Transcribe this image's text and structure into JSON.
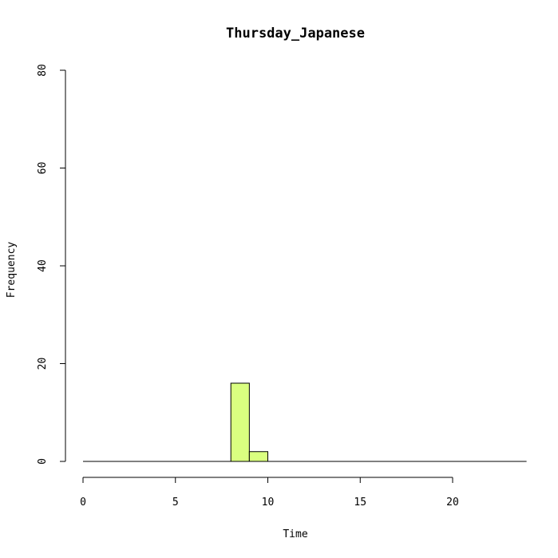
{
  "chart_data": {
    "type": "bar",
    "title": "Thursday_Japanese",
    "xlabel": "Time",
    "ylabel": "Frequency",
    "xlim": [
      0,
      24
    ],
    "ylim": [
      0,
      80
    ],
    "x_ticks": [
      0,
      5,
      10,
      15,
      20
    ],
    "y_ticks": [
      0,
      20,
      40,
      60,
      80
    ],
    "bin_width": 1,
    "bins": [
      {
        "start": 0,
        "end": 1,
        "count": 0
      },
      {
        "start": 1,
        "end": 2,
        "count": 0
      },
      {
        "start": 2,
        "end": 3,
        "count": 0
      },
      {
        "start": 3,
        "end": 4,
        "count": 0
      },
      {
        "start": 4,
        "end": 5,
        "count": 0
      },
      {
        "start": 5,
        "end": 6,
        "count": 0
      },
      {
        "start": 6,
        "end": 7,
        "count": 0
      },
      {
        "start": 7,
        "end": 8,
        "count": 0
      },
      {
        "start": 8,
        "end": 9,
        "count": 16
      },
      {
        "start": 9,
        "end": 10,
        "count": 2
      },
      {
        "start": 10,
        "end": 11,
        "count": 0
      },
      {
        "start": 11,
        "end": 12,
        "count": 0
      },
      {
        "start": 12,
        "end": 13,
        "count": 0
      },
      {
        "start": 13,
        "end": 14,
        "count": 0
      },
      {
        "start": 14,
        "end": 15,
        "count": 0
      },
      {
        "start": 15,
        "end": 16,
        "count": 0
      },
      {
        "start": 16,
        "end": 17,
        "count": 0
      },
      {
        "start": 17,
        "end": 18,
        "count": 0
      },
      {
        "start": 18,
        "end": 19,
        "count": 0
      },
      {
        "start": 19,
        "end": 20,
        "count": 0
      },
      {
        "start": 20,
        "end": 21,
        "count": 0
      },
      {
        "start": 21,
        "end": 22,
        "count": 0
      },
      {
        "start": 22,
        "end": 23,
        "count": 0
      },
      {
        "start": 23,
        "end": 24,
        "count": 0
      }
    ],
    "bar_color": "#DAFF80",
    "grid": false
  }
}
